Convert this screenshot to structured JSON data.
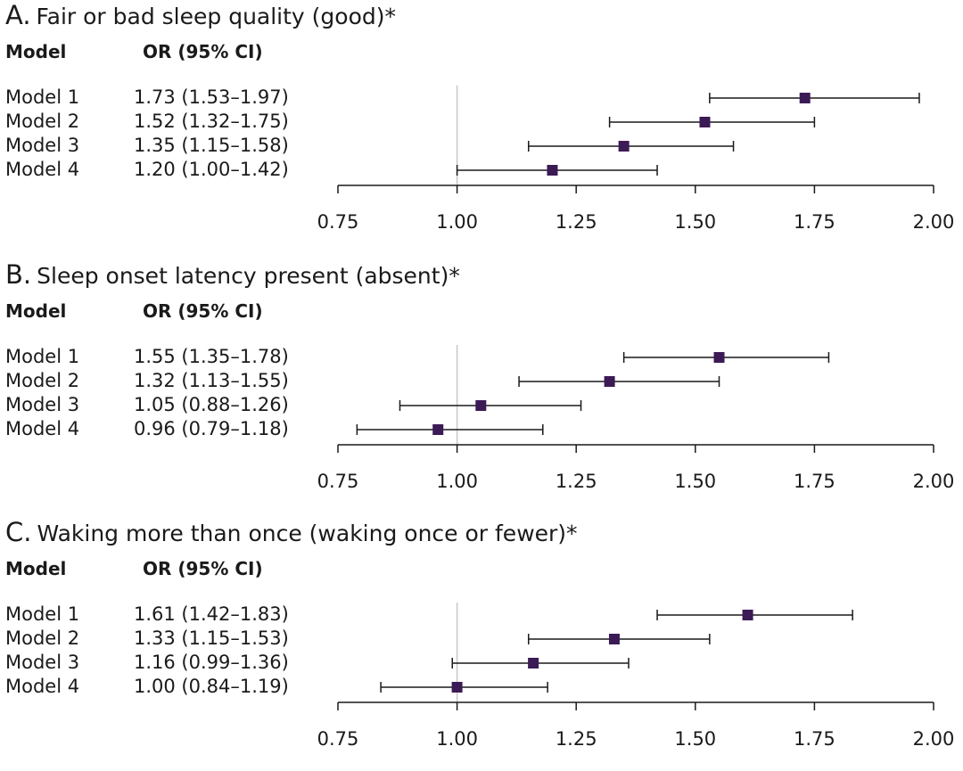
{
  "chart_data": [
    {
      "type": "forest",
      "letter": "A.",
      "title": "Fair or bad sleep quality (good)*",
      "col_model": "Model",
      "col_or": "OR (95% CI)",
      "xlim": [
        0.75,
        2.0
      ],
      "xticks": [
        0.75,
        1.0,
        1.25,
        1.5,
        1.75,
        2.0
      ],
      "xtick_labels": [
        "0.75",
        "1.00",
        "1.25",
        "1.50",
        "1.75",
        "2.00"
      ],
      "reference_line": 1.0,
      "rows": [
        {
          "label": "Model 1",
          "or_text": "1.73 (1.53–1.97)",
          "or": 1.73,
          "lo": 1.53,
          "hi": 1.97
        },
        {
          "label": "Model 2",
          "or_text": "1.52 (1.32–1.75)",
          "or": 1.52,
          "lo": 1.32,
          "hi": 1.75
        },
        {
          "label": "Model 3",
          "or_text": "1.35 (1.15–1.58)",
          "or": 1.35,
          "lo": 1.15,
          "hi": 1.58
        },
        {
          "label": "Model 4",
          "or_text": "1.20 (1.00–1.42)",
          "or": 1.2,
          "lo": 1.0,
          "hi": 1.42
        }
      ]
    },
    {
      "type": "forest",
      "letter": "B.",
      "title": "Sleep onset latency present (absent)*",
      "col_model": "Model",
      "col_or": "OR (95% CI)",
      "xlim": [
        0.75,
        2.0
      ],
      "xticks": [
        0.75,
        1.0,
        1.25,
        1.5,
        1.75,
        2.0
      ],
      "xtick_labels": [
        "0.75",
        "1.00",
        "1.25",
        "1.50",
        "1.75",
        "2.00"
      ],
      "reference_line": 1.0,
      "rows": [
        {
          "label": "Model 1",
          "or_text": "1.55 (1.35–1.78)",
          "or": 1.55,
          "lo": 1.35,
          "hi": 1.78
        },
        {
          "label": "Model 2",
          "or_text": "1.32 (1.13–1.55)",
          "or": 1.32,
          "lo": 1.13,
          "hi": 1.55
        },
        {
          "label": "Model 3",
          "or_text": "1.05 (0.88–1.26)",
          "or": 1.05,
          "lo": 0.88,
          "hi": 1.26
        },
        {
          "label": "Model 4",
          "or_text": "0.96 (0.79–1.18)",
          "or": 0.96,
          "lo": 0.79,
          "hi": 1.18
        }
      ]
    },
    {
      "type": "forest",
      "letter": "C.",
      "title": "Waking more than once (waking once or fewer)*",
      "col_model": "Model",
      "col_or": "OR (95% CI)",
      "xlim": [
        0.75,
        2.0
      ],
      "xticks": [
        0.75,
        1.0,
        1.25,
        1.5,
        1.75,
        2.0
      ],
      "xtick_labels": [
        "0.75",
        "1.00",
        "1.25",
        "1.50",
        "1.75",
        "2.00"
      ],
      "reference_line": 1.0,
      "rows": [
        {
          "label": "Model 1",
          "or_text": "1.61 (1.42–1.83)",
          "or": 1.61,
          "lo": 1.42,
          "hi": 1.83
        },
        {
          "label": "Model 2",
          "or_text": "1.33 (1.15–1.53)",
          "or": 1.33,
          "lo": 1.15,
          "hi": 1.53
        },
        {
          "label": "Model 3",
          "or_text": "1.16 (0.99–1.36)",
          "or": 1.16,
          "lo": 0.99,
          "hi": 1.36
        },
        {
          "label": "Model 4",
          "or_text": "1.00 (0.84–1.19)",
          "or": 1.0,
          "lo": 0.84,
          "hi": 1.19
        }
      ]
    }
  ],
  "colors": {
    "marker": "#3b1a55",
    "ci_line": "#1a1a1a",
    "reference": "#c8c8c8",
    "axis": "#1a1a1a"
  }
}
